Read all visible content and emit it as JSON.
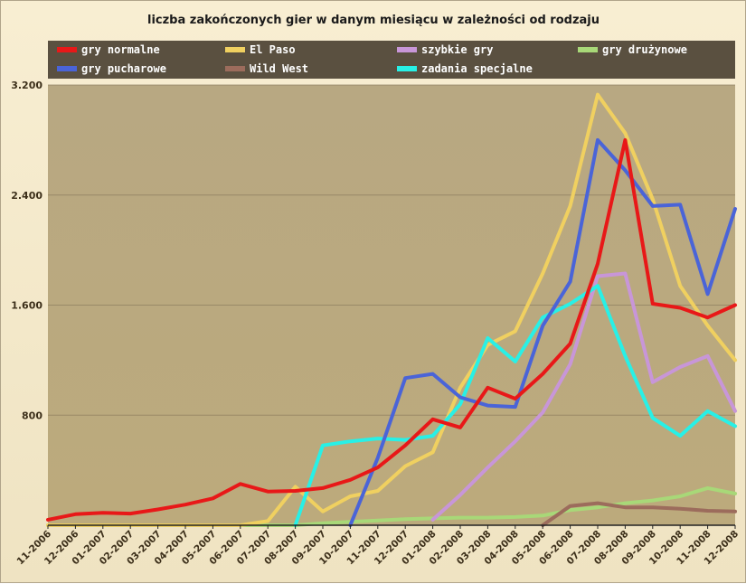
{
  "chart_data": {
    "type": "line",
    "title": "liczba zakończonych gier w danym miesiącu w zależności od rodzaju",
    "xlabel": "",
    "ylabel": "",
    "ylim": [
      0,
      3200
    ],
    "y_ticks": [
      "800",
      "1.600",
      "2.400",
      "3.200"
    ],
    "y_tick_values": [
      800,
      1600,
      2400,
      3200
    ],
    "grid": true,
    "legend_position": "top",
    "categories": [
      "11-2006",
      "12-2006",
      "01-2007",
      "02-2007",
      "03-2007",
      "04-2007",
      "05-2007",
      "06-2007",
      "07-2007",
      "08-2007",
      "09-2007",
      "10-2007",
      "11-2007",
      "12-2007",
      "01-2008",
      "02-2008",
      "03-2008",
      "04-2008",
      "05-2008",
      "06-2008",
      "07-2008",
      "08-2008",
      "09-2008",
      "10-2008",
      "11-2008",
      "12-2008"
    ],
    "series": [
      {
        "name": "gry normalne",
        "color": "#e81818",
        "values": [
          40,
          80,
          90,
          85,
          115,
          150,
          195,
          300,
          245,
          250,
          270,
          330,
          420,
          580,
          770,
          710,
          1000,
          920,
          1100,
          1320,
          1900,
          2800,
          1610,
          1580,
          1510,
          1600
        ]
      },
      {
        "name": "gry pucharowe",
        "color": "#4a64d8",
        "values": [
          null,
          null,
          null,
          null,
          null,
          null,
          null,
          null,
          null,
          null,
          null,
          0,
          490,
          1070,
          1100,
          930,
          870,
          860,
          1450,
          1770,
          2800,
          2580,
          2320,
          2330,
          1680,
          2300
        ]
      },
      {
        "name": "El Paso",
        "color": "#f0d060",
        "values": [
          0,
          0,
          0,
          0,
          0,
          0,
          0,
          0,
          30,
          280,
          100,
          210,
          250,
          430,
          530,
          1000,
          1310,
          1410,
          1830,
          2320,
          3130,
          2850,
          2370,
          1740,
          1450,
          1200
        ]
      },
      {
        "name": "Wild West",
        "color": "#9c6c5c",
        "values": [
          null,
          null,
          null,
          null,
          null,
          null,
          null,
          null,
          null,
          null,
          null,
          null,
          null,
          null,
          null,
          null,
          null,
          null,
          0,
          140,
          160,
          130,
          130,
          120,
          105,
          100
        ]
      },
      {
        "name": "szybkie gry",
        "color": "#c896d8",
        "values": [
          null,
          null,
          null,
          null,
          null,
          null,
          null,
          null,
          null,
          null,
          null,
          null,
          null,
          null,
          40,
          220,
          420,
          610,
          820,
          1170,
          1810,
          1830,
          1040,
          1150,
          1230,
          830
        ]
      },
      {
        "name": "zadania specjalne",
        "color": "#28f0e6",
        "values": [
          null,
          null,
          null,
          null,
          null,
          null,
          null,
          null,
          null,
          0,
          580,
          610,
          630,
          620,
          650,
          880,
          1360,
          1190,
          1510,
          1610,
          1740,
          1230,
          780,
          650,
          830,
          720
        ]
      },
      {
        "name": "gry drużynowe",
        "color": "#a8d878",
        "values": [
          0,
          0,
          0,
          0,
          0,
          0,
          0,
          0,
          0,
          0,
          15,
          25,
          35,
          45,
          50,
          55,
          55,
          60,
          70,
          110,
          130,
          160,
          180,
          210,
          270,
          230
        ]
      }
    ]
  }
}
